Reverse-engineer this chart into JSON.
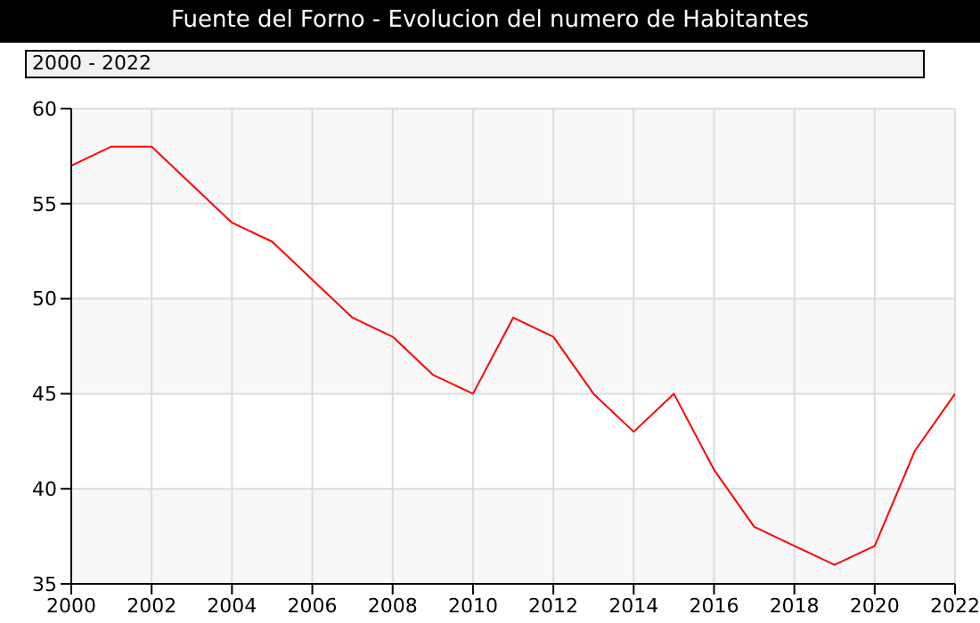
{
  "chart_data": {
    "type": "line",
    "title": "Fuente del Forno - Evolucion del numero de Habitantes",
    "subtitle": "2000 - 2022",
    "x": [
      2000,
      2001,
      2002,
      2003,
      2004,
      2005,
      2006,
      2007,
      2008,
      2009,
      2010,
      2011,
      2012,
      2013,
      2014,
      2015,
      2016,
      2017,
      2018,
      2019,
      2020,
      2021,
      2022
    ],
    "series": [
      {
        "color": "#ff0000",
        "values": [
          57,
          58,
          58,
          56,
          54,
          53,
          51,
          49,
          48,
          46,
          45,
          49,
          48,
          45,
          43,
          45,
          41,
          38,
          37,
          36,
          37,
          42,
          45
        ]
      }
    ],
    "xlim": [
      2000,
      2022
    ],
    "xticks": [
      2000,
      2002,
      2004,
      2006,
      2008,
      2010,
      2012,
      2014,
      2016,
      2018,
      2020,
      2022
    ],
    "ylim": [
      35,
      60
    ],
    "yticks": [
      35,
      40,
      45,
      50,
      55,
      60
    ],
    "grid": true,
    "marker": "none",
    "line_style": "solid"
  }
}
